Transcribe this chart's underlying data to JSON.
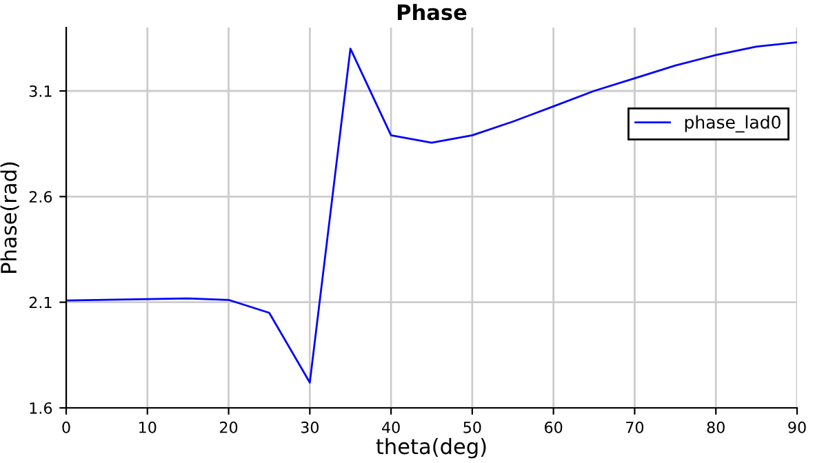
{
  "chart_data": {
    "type": "line",
    "title": "Phase",
    "xlabel": "theta(deg)",
    "ylabel": "Phase(rad)",
    "x": [
      0,
      10,
      15,
      20,
      25,
      30,
      35,
      40,
      45,
      50,
      55,
      60,
      65,
      70,
      75,
      80,
      85,
      90
    ],
    "series": [
      {
        "name": "phase_lad0",
        "color": "#0000ff",
        "values": [
          2.108,
          2.115,
          2.118,
          2.111,
          2.05,
          1.72,
          3.3,
          2.89,
          2.855,
          2.89,
          2.955,
          3.027,
          3.1,
          3.16,
          3.22,
          3.27,
          3.31,
          3.33
        ]
      }
    ],
    "xlim": [
      0,
      90
    ],
    "xticks": [
      0,
      10,
      20,
      30,
      40,
      50,
      60,
      70,
      80,
      90
    ],
    "ylim": [
      1.6,
      3.4
    ],
    "yticks": [
      1.6,
      2.1,
      2.6,
      3.1
    ],
    "grid": true,
    "legend": "top right"
  }
}
